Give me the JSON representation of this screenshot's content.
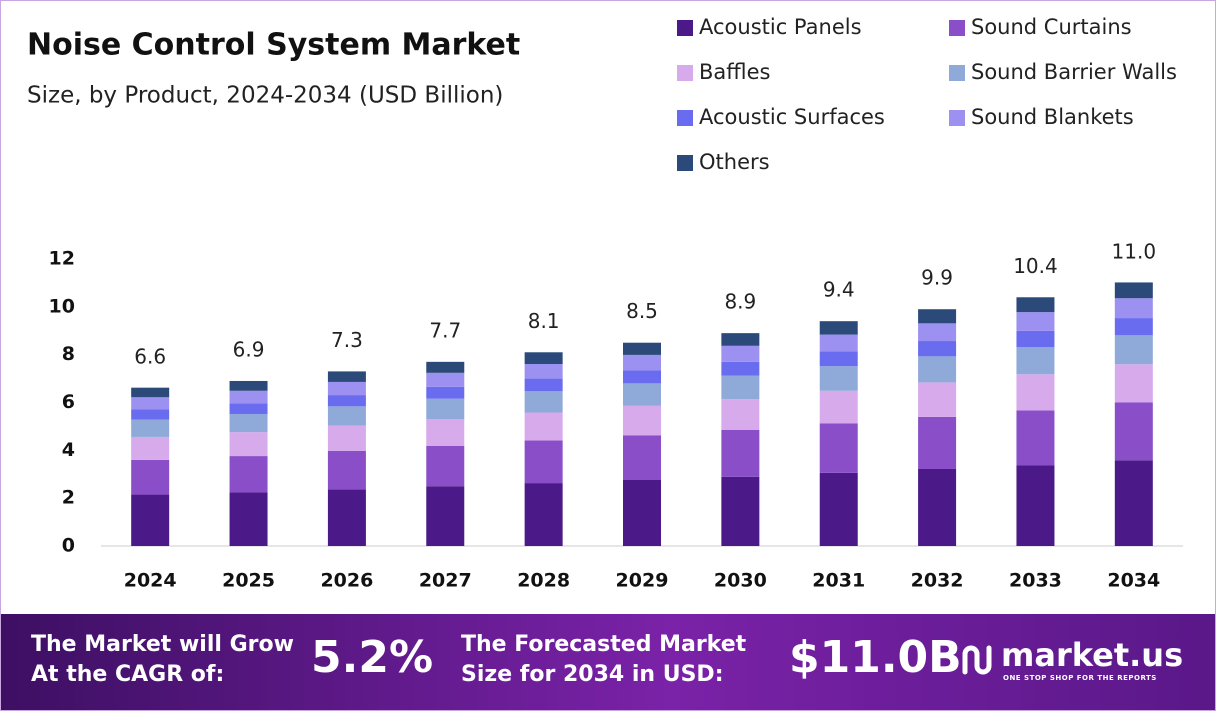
{
  "chart_data": {
    "type": "stacked-bar",
    "title": "Noise Control System Market",
    "subtitle": "Size, by Product, 2024-2034 (USD Billion)",
    "categories": [
      "2024",
      "2025",
      "2026",
      "2027",
      "2028",
      "2029",
      "2030",
      "2031",
      "2032",
      "2033",
      "2034"
    ],
    "series": [
      {
        "name": "Acoustic Panels",
        "color": "#4b1a88",
        "values": [
          2.15,
          2.24,
          2.37,
          2.5,
          2.63,
          2.76,
          2.89,
          3.06,
          3.22,
          3.38,
          3.58
        ]
      },
      {
        "name": "Sound Curtains",
        "color": "#8a4ec8",
        "values": [
          1.45,
          1.52,
          1.61,
          1.69,
          1.78,
          1.87,
          1.96,
          2.07,
          2.18,
          2.29,
          2.42
        ]
      },
      {
        "name": "Baffles",
        "color": "#d7aaec",
        "values": [
          0.96,
          1.0,
          1.06,
          1.12,
          1.17,
          1.23,
          1.29,
          1.36,
          1.44,
          1.51,
          1.6
        ]
      },
      {
        "name": "Sound Barrier Walls",
        "color": "#8fa9d8",
        "values": [
          0.73,
          0.76,
          0.8,
          0.85,
          0.89,
          0.94,
          0.98,
          1.03,
          1.09,
          1.14,
          1.21
        ]
      },
      {
        "name": "Acoustic Surfaces",
        "color": "#6a6cf0",
        "values": [
          0.43,
          0.45,
          0.47,
          0.5,
          0.53,
          0.55,
          0.58,
          0.61,
          0.64,
          0.68,
          0.72
        ]
      },
      {
        "name": "Sound Blankets",
        "color": "#9c90f0",
        "values": [
          0.5,
          0.52,
          0.55,
          0.58,
          0.61,
          0.64,
          0.67,
          0.71,
          0.74,
          0.78,
          0.83
        ]
      },
      {
        "name": "Others",
        "color": "#2b4a7a",
        "values": [
          0.4,
          0.41,
          0.44,
          0.46,
          0.49,
          0.51,
          0.53,
          0.56,
          0.59,
          0.62,
          0.66
        ]
      }
    ],
    "totals": [
      6.6,
      6.9,
      7.3,
      7.7,
      8.1,
      8.5,
      8.9,
      9.4,
      9.9,
      10.4,
      11.0
    ],
    "value_labels": [
      "6.6",
      "6.9",
      "7.3",
      "7.7",
      "8.1",
      "8.5",
      "8.9",
      "9.4",
      "9.9",
      "10.4",
      "11.0"
    ],
    "ylim": [
      0,
      12
    ],
    "yticks": [
      0,
      2,
      4,
      6,
      8,
      10,
      12
    ],
    "grid": false
  },
  "footer": {
    "cagr_text_1": "The Market will Grow",
    "cagr_text_2": "At the CAGR of:",
    "cagr": "5.2%",
    "size_text_1": "The Forecasted Market",
    "size_text_2": "Size for 2034 in USD:",
    "size": "$11.0B",
    "brand": "market.us",
    "tagline": "ONE STOP SHOP FOR THE REPORTS"
  }
}
